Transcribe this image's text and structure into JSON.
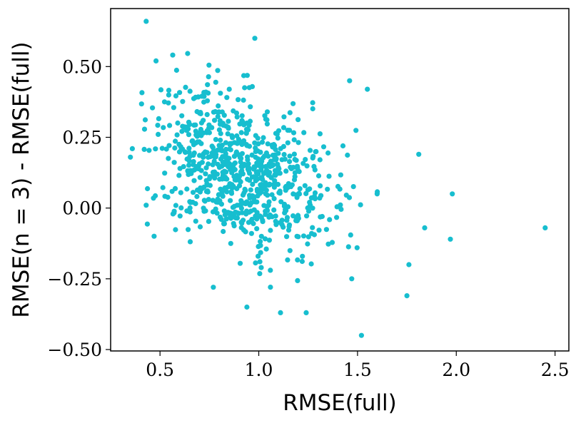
{
  "chart_data": {
    "type": "scatter",
    "title": "",
    "xlabel": "RMSE(full)",
    "ylabel": "RMSE(n = 3) - RMSE(full)",
    "xlim": [
      0.25,
      2.57
    ],
    "ylim": [
      -0.505,
      0.705
    ],
    "xticks": [
      0.5,
      1.0,
      1.5,
      2.0,
      2.5
    ],
    "xtick_labels": [
      "0.5",
      "1.0",
      "1.5",
      "2.0",
      "2.5"
    ],
    "yticks": [
      0.5,
      0.25,
      0.0,
      -0.25,
      -0.5
    ],
    "ytick_labels": [
      "0.50",
      "0.25",
      "0.00",
      "−0.25",
      "−0.50"
    ],
    "grid": false,
    "marker_color": "#17becf",
    "notable_points": [
      {
        "x": 0.43,
        "y": 0.66
      },
      {
        "x": 0.98,
        "y": 0.6
      },
      {
        "x": 2.45,
        "y": -0.07
      },
      {
        "x": 1.98,
        "y": 0.05
      },
      {
        "x": 1.52,
        "y": -0.45
      },
      {
        "x": 1.81,
        "y": 0.19
      },
      {
        "x": 1.84,
        "y": -0.07
      },
      {
        "x": 1.97,
        "y": -0.11
      },
      {
        "x": 1.76,
        "y": -0.2
      },
      {
        "x": 1.75,
        "y": -0.31
      },
      {
        "x": 0.35,
        "y": 0.18
      },
      {
        "x": 0.36,
        "y": 0.21
      },
      {
        "x": 0.43,
        "y": 0.01
      },
      {
        "x": 0.48,
        "y": 0.52
      },
      {
        "x": 1.11,
        "y": -0.37
      },
      {
        "x": 1.24,
        "y": -0.37
      },
      {
        "x": 0.94,
        "y": -0.35
      },
      {
        "x": 0.77,
        "y": -0.28
      },
      {
        "x": 1.46,
        "y": 0.45
      },
      {
        "x": 1.55,
        "y": 0.42
      }
    ],
    "cluster": {
      "count": 760,
      "x_mean": 0.9,
      "x_std": 0.24,
      "y_mean": 0.13,
      "y_std": 0.14,
      "correlation": -0.35,
      "x_range": [
        0.4,
        1.6
      ],
      "y_range": [
        -0.38,
        0.56
      ]
    }
  }
}
